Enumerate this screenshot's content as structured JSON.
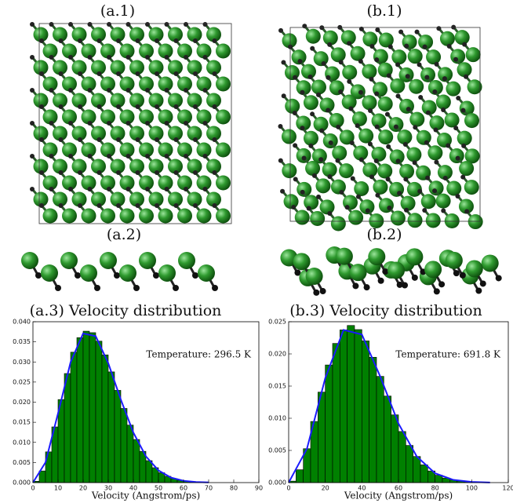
{
  "panels": {
    "a1": "(a.1)",
    "b1": "(b.1)",
    "a2": "(a.2)",
    "b2": "(b.2)"
  },
  "chart_data": [
    {
      "type": "histogram",
      "title": "(a.3) Velocity distribution",
      "xlabel": "Velocity (Angstrom/ps)",
      "annotation": "Temperature: 296.5 K",
      "color": "#008000",
      "bins": [
        0,
        2.5,
        5,
        7.5,
        10,
        12.5,
        15,
        17.5,
        20,
        22.5,
        25,
        27.5,
        30,
        32.5,
        35,
        37.5,
        40,
        42.5,
        45,
        47.5,
        50,
        52.5,
        55,
        57.5,
        60,
        62.5,
        65,
        67.5,
        70
      ],
      "values": [
        0.00033,
        0.0029,
        0.00764,
        0.01385,
        0.02065,
        0.02712,
        0.03243,
        0.03604,
        0.03765,
        0.03728,
        0.03517,
        0.03176,
        0.02753,
        0.02294,
        0.01844,
        0.0143,
        0.01072,
        0.00777,
        0.00546,
        0.00371,
        0.00245,
        0.00157,
        0.00097,
        0.00059,
        0.00034,
        0.00019,
        0.00011,
        6e-05
      ],
      "line": {
        "color": "#1a1aff",
        "x": [
          0,
          5,
          10,
          15,
          20,
          25,
          30,
          35,
          40,
          45,
          50,
          55,
          60,
          65,
          70
        ],
        "values": [
          0,
          0.00503,
          0.01724,
          0.02996,
          0.0371,
          0.03642,
          0.0297,
          0.02067,
          0.01245,
          0.00654,
          0.00303,
          0.00124,
          0.00045,
          0.00015,
          4e-05
        ]
      },
      "xlim": [
        0,
        90
      ],
      "xticks": [
        0,
        10,
        20,
        30,
        40,
        50,
        60,
        70,
        80,
        90
      ],
      "ylim": [
        0,
        0.04
      ],
      "yticks": [
        {
          "value": 0,
          "label": "0.000"
        },
        {
          "value": 0.005,
          "label": "0.005"
        },
        {
          "value": 0.01,
          "label": "0.010"
        },
        {
          "value": 0.015,
          "label": "0.015"
        },
        {
          "value": 0.02,
          "label": "0.020"
        },
        {
          "value": 0.025,
          "label": "0.025"
        },
        {
          "value": 0.03,
          "label": "0.030"
        },
        {
          "value": 0.035,
          "label": "0.035"
        },
        {
          "value": 0.04,
          "label": "0.040"
        }
      ]
    },
    {
      "type": "histogram",
      "title": "(b.3) Velocity distribution",
      "xlabel": "Velocity (Angstrom/ps)",
      "annotation": "Temperature: 691.8 K",
      "color": "#008000",
      "bins": [
        0,
        4,
        8,
        12,
        16,
        20,
        24,
        28,
        32,
        36,
        40,
        44,
        48,
        52,
        56,
        60,
        64,
        68,
        72,
        76,
        80,
        84,
        88,
        92,
        96,
        100,
        104,
        108
      ],
      "values": [
        0.00023,
        0.002,
        0.00527,
        0.0095,
        0.01406,
        0.01828,
        0.02163,
        0.02373,
        0.02442,
        0.02378,
        0.02202,
        0.01948,
        0.01651,
        0.01345,
        0.01053,
        0.00794,
        0.00578,
        0.00406,
        0.00276,
        0.00181,
        0.00115,
        0.00071,
        0.00042,
        0.00024,
        0.00014,
        7e-05,
        4e-05
      ],
      "line": {
        "color": "#1a1aff",
        "x": [
          0,
          10,
          20,
          30,
          40,
          50,
          60,
          70,
          80,
          90,
          100,
          110
        ],
        "values": [
          0,
          0.00527,
          0.01625,
          0.02373,
          0.02302,
          0.01651,
          0.00918,
          0.00406,
          0.00145,
          0.00042,
          0.0001,
          2e-05
        ]
      },
      "xlim": [
        0,
        120
      ],
      "xticks": [
        0,
        20,
        40,
        60,
        80,
        100,
        120
      ],
      "ylim": [
        0,
        0.025
      ],
      "yticks": [
        {
          "value": 0,
          "label": "0.000"
        },
        {
          "value": 0.005,
          "label": "0.005"
        },
        {
          "value": 0.01,
          "label": "0.010"
        },
        {
          "value": 0.015,
          "label": "0.015"
        },
        {
          "value": 0.02,
          "label": "0.020"
        },
        {
          "value": 0.025,
          "label": "0.025"
        }
      ]
    }
  ]
}
